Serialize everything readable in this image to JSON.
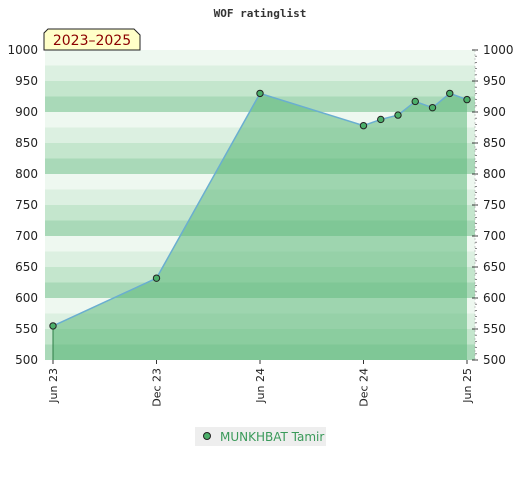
{
  "chart_data": {
    "type": "area",
    "title": "WOF ratinglist",
    "period_badge": "2023–2025",
    "xlabel": "",
    "ylabel": "",
    "ylim": [
      500,
      1000
    ],
    "yticks": [
      500,
      550,
      600,
      650,
      700,
      750,
      800,
      850,
      900,
      950,
      1000
    ],
    "x_ticks": [
      "Jun 23",
      "Dec 23",
      "Jun 24",
      "Dec 24",
      "Jun 25"
    ],
    "grid": true,
    "legend_position": "bottom-center",
    "series": [
      {
        "name": "MUNKHBAT Tamir",
        "color": "#6aaed0",
        "fill": "#5cb87a",
        "points": [
          {
            "x": "2023-06",
            "y": 555
          },
          {
            "x": "2023-12",
            "y": 632
          },
          {
            "x": "2024-06",
            "y": 930
          },
          {
            "x": "2024-12",
            "y": 878
          },
          {
            "x": "2025-01",
            "y": 888
          },
          {
            "x": "2025-02",
            "y": 895
          },
          {
            "x": "2025-03",
            "y": 917
          },
          {
            "x": "2025-04",
            "y": 907
          },
          {
            "x": "2025-05",
            "y": 930
          },
          {
            "x": "2025-06",
            "y": 920
          }
        ]
      }
    ]
  }
}
